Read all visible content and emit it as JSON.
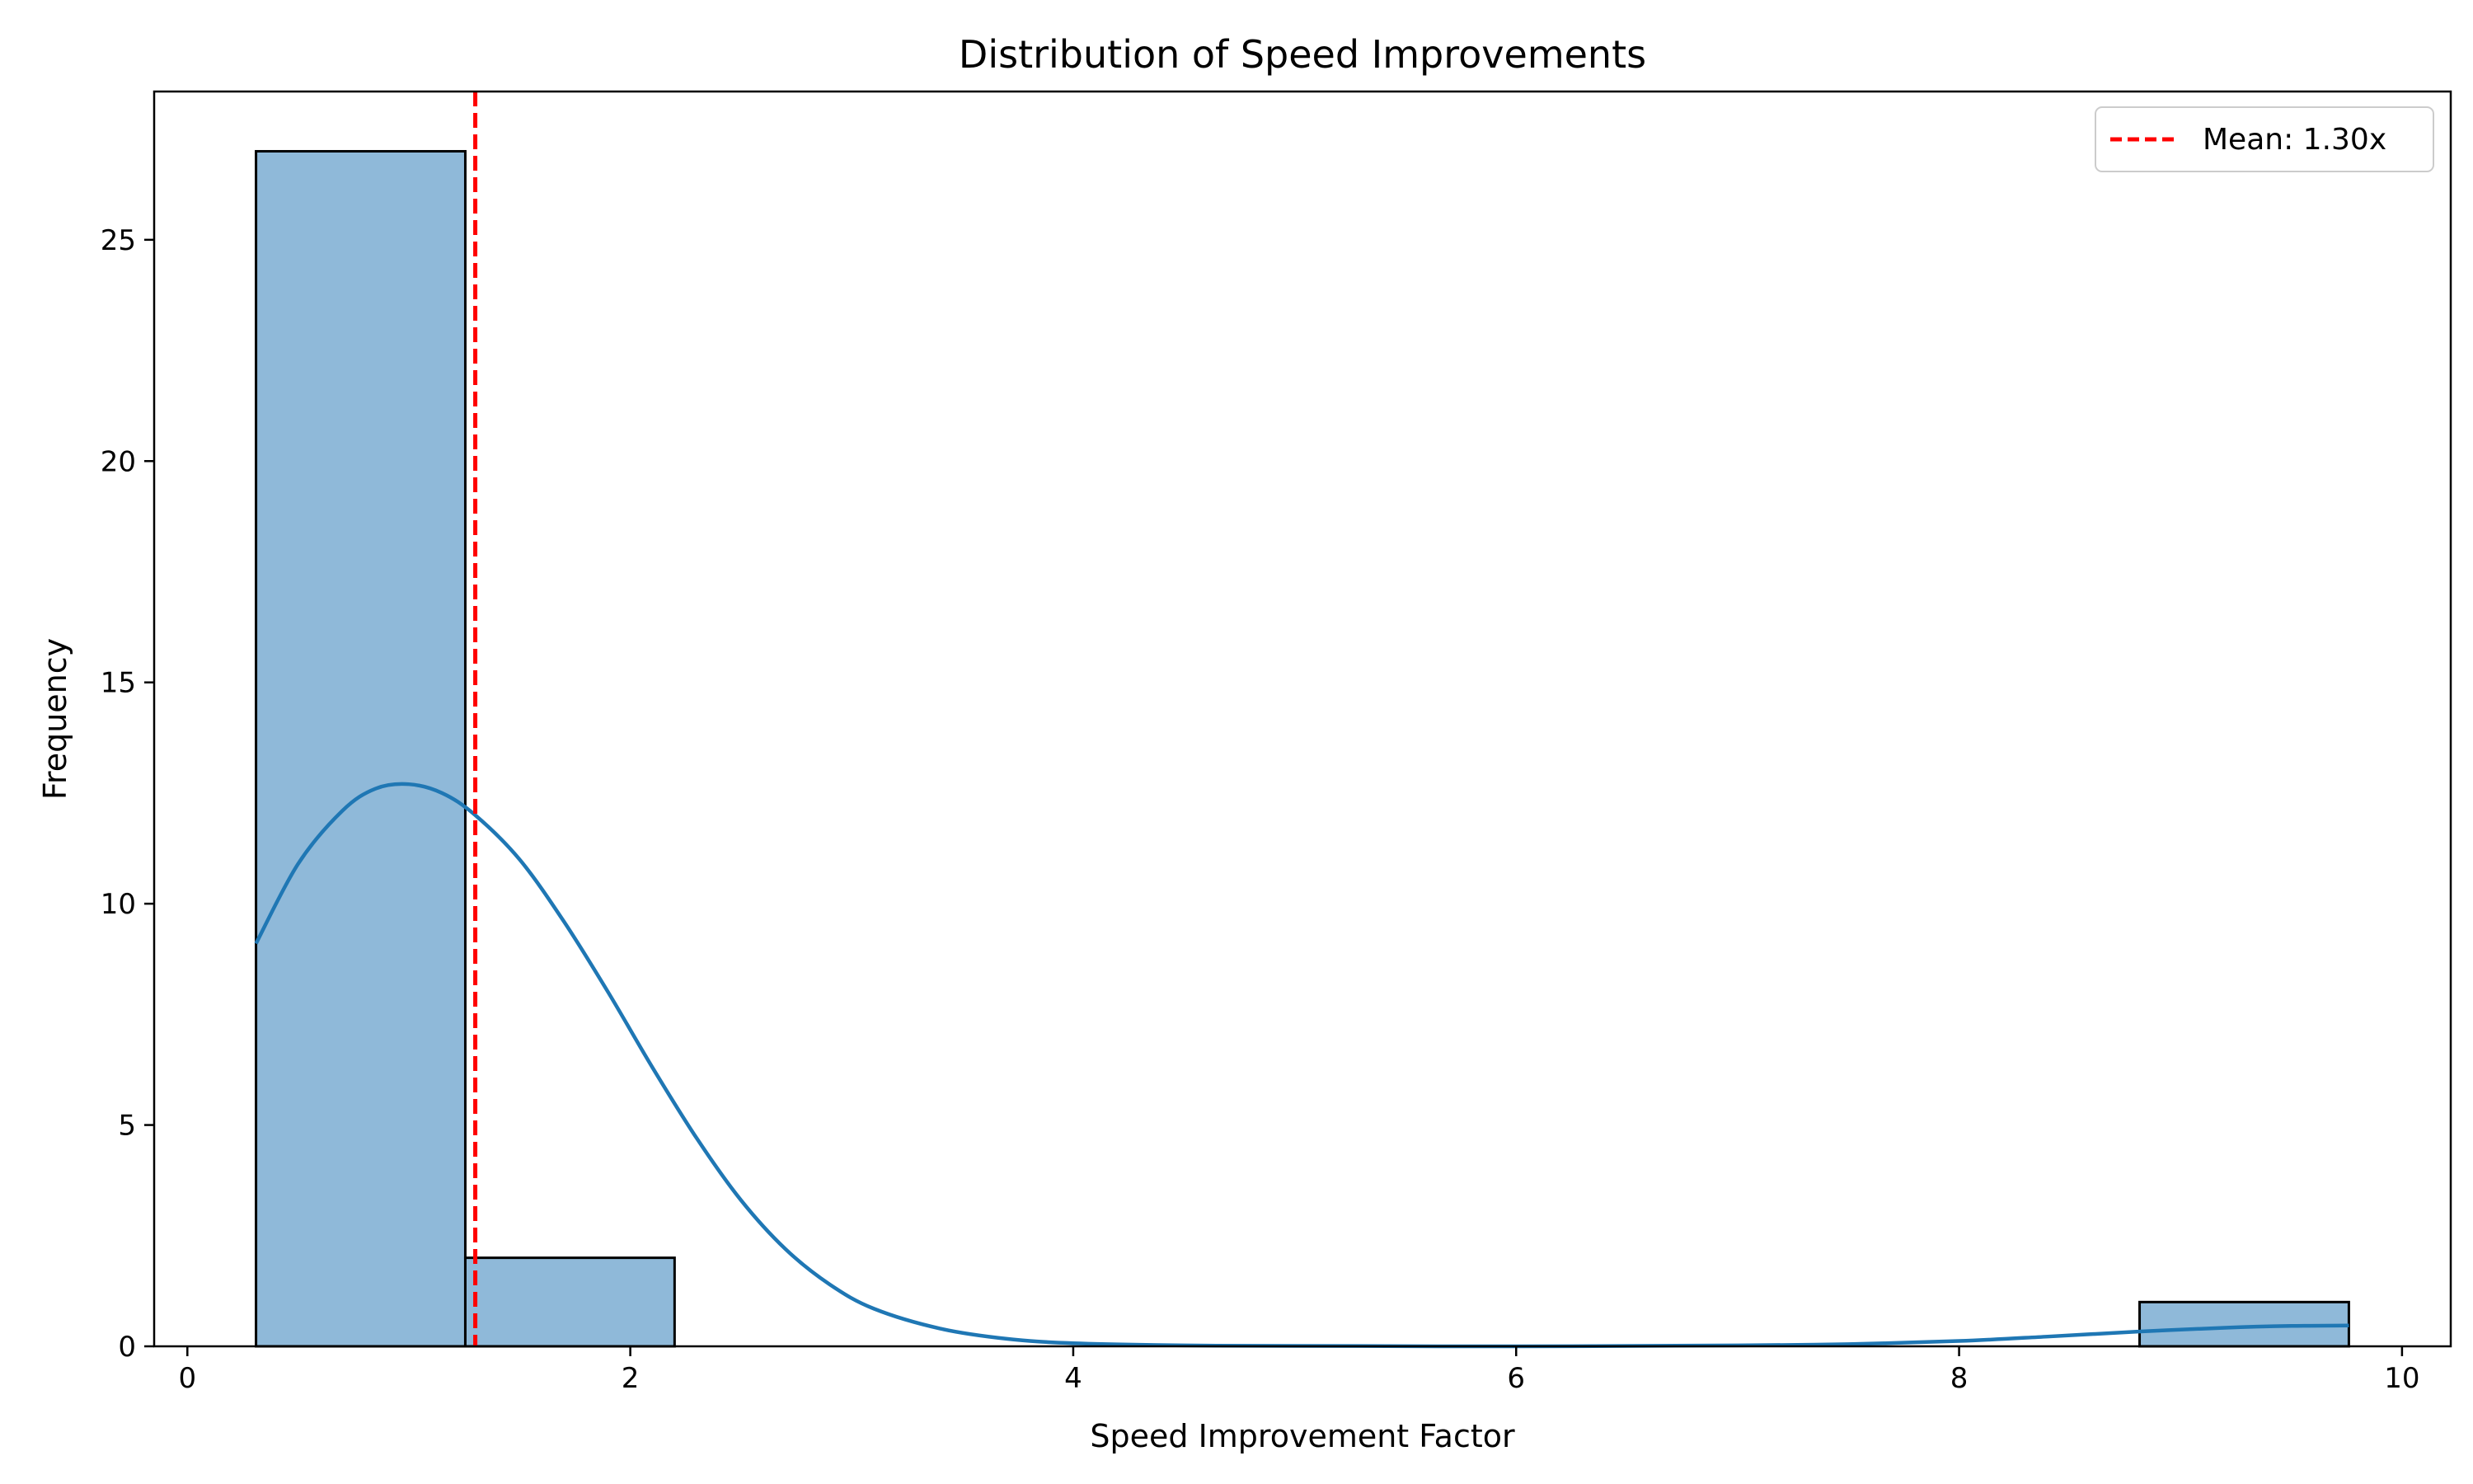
{
  "chart_data": {
    "type": "bar",
    "title": "Distribution of Speed Improvements",
    "xlabel": "Speed Improvement Factor",
    "ylabel": "Frequency",
    "xlim": [
      -0.15,
      10.22
    ],
    "ylim": [
      0,
      28.35
    ],
    "xticks": [
      0,
      2,
      4,
      6,
      8,
      10
    ],
    "yticks": [
      0,
      5,
      10,
      15,
      20,
      25
    ],
    "grid": false,
    "legend_position": "top-right",
    "bins": [
      {
        "x0": 0.31,
        "x1": 1.255,
        "count": 27
      },
      {
        "x0": 1.255,
        "x1": 2.2,
        "count": 2
      },
      {
        "x0": 2.2,
        "x1": 3.145,
        "count": 0
      },
      {
        "x0": 3.145,
        "x1": 4.09,
        "count": 0
      },
      {
        "x0": 4.09,
        "x1": 5.035,
        "count": 0
      },
      {
        "x0": 5.035,
        "x1": 5.98,
        "count": 0
      },
      {
        "x0": 5.98,
        "x1": 6.925,
        "count": 0
      },
      {
        "x0": 6.925,
        "x1": 7.87,
        "count": 0
      },
      {
        "x0": 7.87,
        "x1": 8.815,
        "count": 0
      },
      {
        "x0": 8.815,
        "x1": 9.76,
        "count": 1
      }
    ],
    "kde": {
      "x": [
        0.31,
        0.5,
        0.7,
        0.85,
        1.0,
        1.15,
        1.3,
        1.5,
        1.7,
        1.9,
        2.1,
        2.3,
        2.5,
        2.7,
        2.9,
        3.1,
        3.4,
        3.7,
        4.0,
        4.5,
        5.0,
        6.0,
        7.0,
        7.5,
        8.0,
        8.4,
        8.8,
        9.2,
        9.5,
        9.76
      ],
      "y": [
        9.1,
        10.9,
        12.1,
        12.6,
        12.7,
        12.5,
        12.0,
        11.0,
        9.6,
        8.0,
        6.3,
        4.7,
        3.3,
        2.2,
        1.4,
        0.85,
        0.4,
        0.17,
        0.07,
        0.02,
        0.01,
        0.0,
        0.02,
        0.05,
        0.12,
        0.22,
        0.33,
        0.42,
        0.46,
        0.47
      ]
    },
    "mean_line": {
      "x": 1.3,
      "label": "Mean: 1.30x"
    },
    "colors": {
      "bar_fill": "#8fb9d9",
      "bar_edge": "#000000",
      "kde_line": "#1f77b4",
      "mean_line": "#ff0000"
    }
  }
}
